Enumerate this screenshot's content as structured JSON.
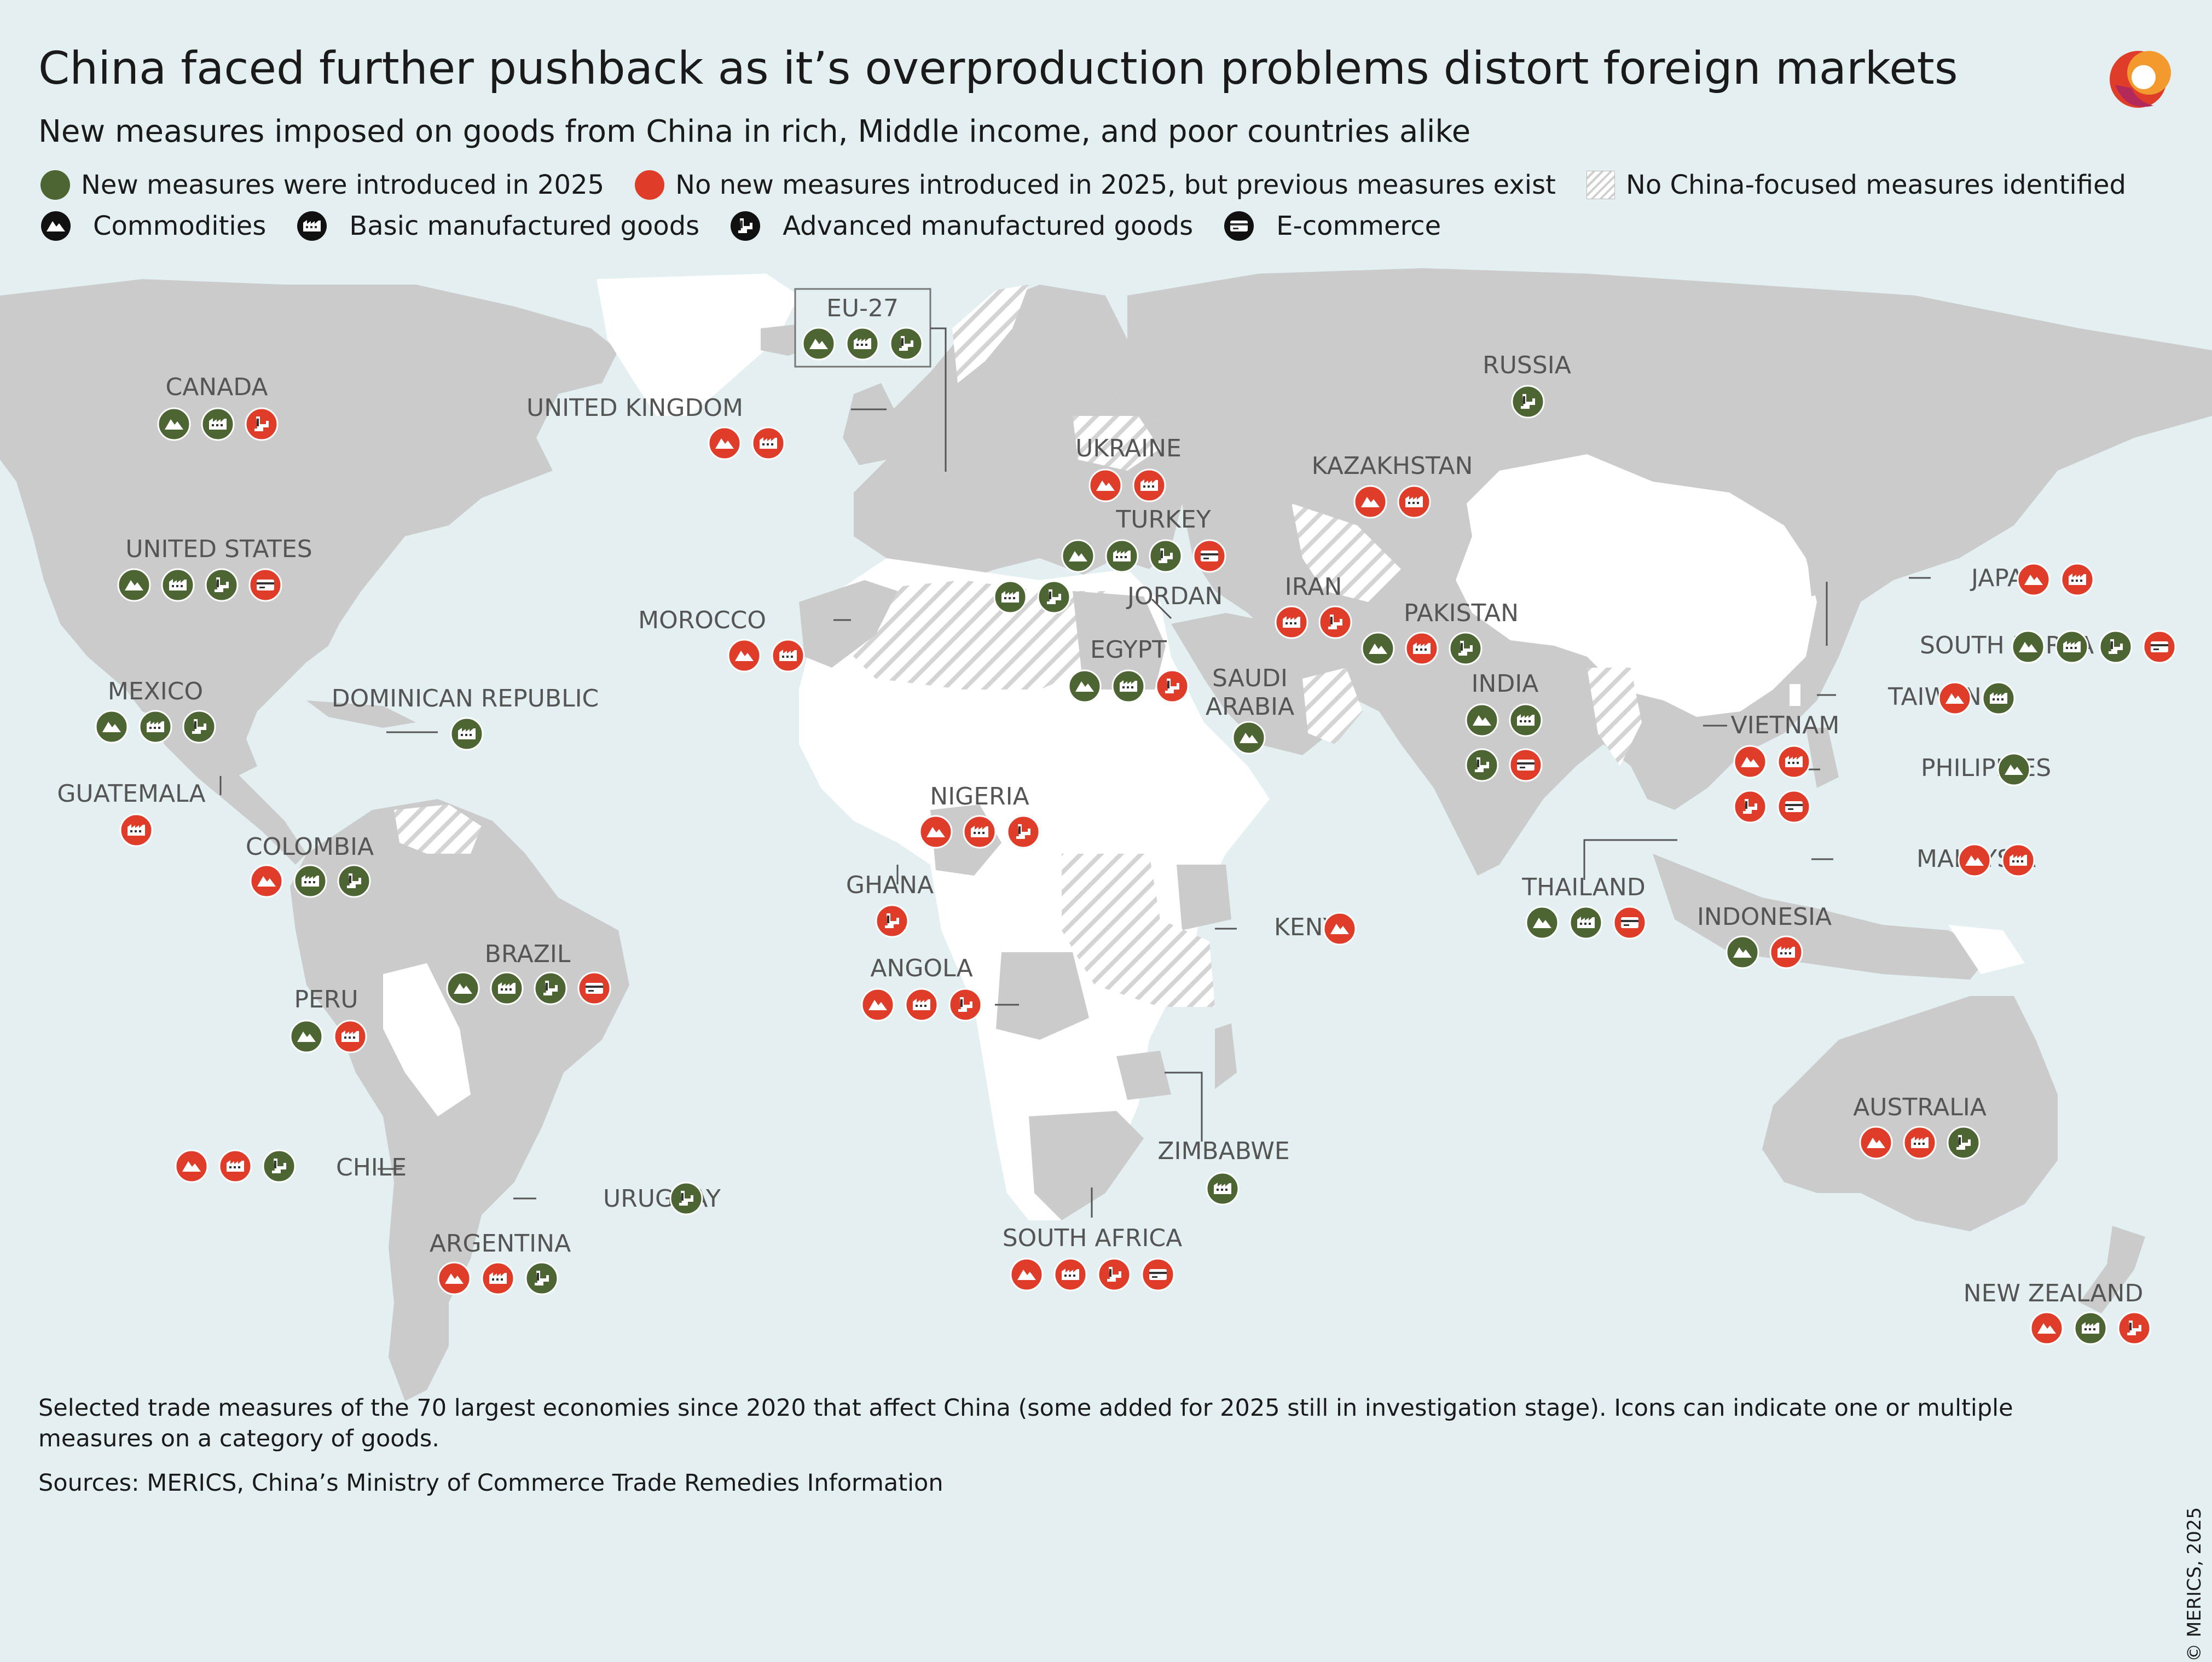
{
  "title": "China faced further pushback as it’s overproduction problems distort foreign markets",
  "subtitle": "New measures imposed on goods from China in rich, Middle income, and poor countries alike",
  "colors": {
    "new": "#4d6533",
    "old": "#e03c2a",
    "land": "#cbcbcb",
    "china": "#ffffff",
    "water": "#e4eff2"
  },
  "legend": {
    "new": "New measures were introduced in 2025",
    "old": "No new measures introduced in 2025, but previous measures exist",
    "none": "No China-focused measures identified",
    "commodities": "Commodities",
    "basic": "Basic manufactured goods",
    "advanced": "Advanced manufactured goods",
    "ecommerce": "E-commerce"
  },
  "countries": [
    {
      "name": "CANADA",
      "icons": [
        [
          "commodities",
          "new"
        ],
        [
          "basic",
          "new"
        ],
        [
          "advanced",
          "old"
        ]
      ]
    },
    {
      "name": "UNITED STATES",
      "icons": [
        [
          "commodities",
          "new"
        ],
        [
          "basic",
          "new"
        ],
        [
          "advanced",
          "new"
        ],
        [
          "ecommerce",
          "old"
        ]
      ]
    },
    {
      "name": "MEXICO",
      "icons": [
        [
          "commodities",
          "new"
        ],
        [
          "basic",
          "new"
        ],
        [
          "advanced",
          "new"
        ]
      ]
    },
    {
      "name": "GUATEMALA",
      "icons": [
        [
          "basic",
          "old"
        ]
      ]
    },
    {
      "name": "DOMINICAN REPUBLIC",
      "icons": [
        [
          "basic",
          "new"
        ]
      ]
    },
    {
      "name": "COLOMBIA",
      "icons": [
        [
          "commodities",
          "old"
        ],
        [
          "basic",
          "new"
        ],
        [
          "advanced",
          "new"
        ]
      ]
    },
    {
      "name": "PERU",
      "icons": [
        [
          "commodities",
          "new"
        ],
        [
          "basic",
          "old"
        ]
      ]
    },
    {
      "name": "BRAZIL",
      "icons": [
        [
          "commodities",
          "new"
        ],
        [
          "basic",
          "new"
        ],
        [
          "advanced",
          "new"
        ],
        [
          "ecommerce",
          "old"
        ]
      ]
    },
    {
      "name": "CHILE",
      "icons": [
        [
          "commodities",
          "old"
        ],
        [
          "basic",
          "old"
        ],
        [
          "advanced",
          "new"
        ]
      ]
    },
    {
      "name": "URUGUAY",
      "icons": [
        [
          "advanced",
          "new"
        ]
      ]
    },
    {
      "name": "ARGENTINA",
      "icons": [
        [
          "commodities",
          "old"
        ],
        [
          "basic",
          "old"
        ],
        [
          "advanced",
          "new"
        ]
      ]
    },
    {
      "name": "EU-27",
      "icons": [
        [
          "commodities",
          "new"
        ],
        [
          "basic",
          "new"
        ],
        [
          "advanced",
          "new"
        ]
      ]
    },
    {
      "name": "UNITED KINGDOM",
      "icons": [
        [
          "commodities",
          "old"
        ],
        [
          "basic",
          "old"
        ]
      ]
    },
    {
      "name": "MOROCCO",
      "icons": [
        [
          "commodities",
          "old"
        ],
        [
          "basic",
          "old"
        ]
      ]
    },
    {
      "name": "UKRAINE",
      "icons": [
        [
          "commodities",
          "old"
        ],
        [
          "basic",
          "old"
        ]
      ]
    },
    {
      "name": "TURKEY",
      "icons": [
        [
          "commodities",
          "new"
        ],
        [
          "basic",
          "new"
        ],
        [
          "advanced",
          "new"
        ],
        [
          "ecommerce",
          "old"
        ]
      ]
    },
    {
      "name": "JORDAN",
      "icons": [
        [
          "basic",
          "new"
        ],
        [
          "advanced",
          "new"
        ]
      ]
    },
    {
      "name": "EGYPT",
      "icons": [
        [
          "commodities",
          "new"
        ],
        [
          "basic",
          "new"
        ],
        [
          "advanced",
          "old"
        ]
      ]
    },
    {
      "name": "SAUDI ARABIA",
      "icons": [
        [
          "commodities",
          "new"
        ]
      ]
    },
    {
      "name": "NIGERIA",
      "icons": [
        [
          "commodities",
          "old"
        ],
        [
          "basic",
          "old"
        ],
        [
          "advanced",
          "old"
        ]
      ]
    },
    {
      "name": "GHANA",
      "icons": [
        [
          "advanced",
          "old"
        ]
      ]
    },
    {
      "name": "ANGOLA",
      "icons": [
        [
          "commodities",
          "old"
        ],
        [
          "basic",
          "old"
        ],
        [
          "advanced",
          "old"
        ]
      ]
    },
    {
      "name": "KENYA",
      "icons": [
        [
          "commodities",
          "old"
        ]
      ]
    },
    {
      "name": "ZIMBABWE",
      "icons": [
        [
          "basic",
          "new"
        ]
      ]
    },
    {
      "name": "SOUTH AFRICA",
      "icons": [
        [
          "commodities",
          "old"
        ],
        [
          "basic",
          "old"
        ],
        [
          "advanced",
          "old"
        ],
        [
          "ecommerce",
          "old"
        ]
      ]
    },
    {
      "name": "RUSSIA",
      "icons": [
        [
          "advanced",
          "new"
        ]
      ]
    },
    {
      "name": "KAZAKHSTAN",
      "icons": [
        [
          "commodities",
          "old"
        ],
        [
          "basic",
          "old"
        ]
      ]
    },
    {
      "name": "IRAN",
      "icons": [
        [
          "basic",
          "old"
        ],
        [
          "advanced",
          "old"
        ]
      ]
    },
    {
      "name": "PAKISTAN",
      "icons": [
        [
          "commodities",
          "new"
        ],
        [
          "basic",
          "old"
        ],
        [
          "advanced",
          "new"
        ]
      ]
    },
    {
      "name": "INDIA",
      "icons": [
        [
          "commodities",
          "new"
        ],
        [
          "basic",
          "new"
        ],
        [
          "advanced",
          "new"
        ],
        [
          "ecommerce",
          "old"
        ]
      ]
    },
    {
      "name": "JAPAN",
      "icons": [
        [
          "commodities",
          "old"
        ],
        [
          "basic",
          "old"
        ]
      ]
    },
    {
      "name": "SOUTH KOREA",
      "icons": [
        [
          "commodities",
          "new"
        ],
        [
          "basic",
          "new"
        ],
        [
          "advanced",
          "new"
        ],
        [
          "ecommerce",
          "old"
        ]
      ]
    },
    {
      "name": "TAIWAN",
      "icons": [
        [
          "commodities",
          "old"
        ],
        [
          "basic",
          "new"
        ]
      ]
    },
    {
      "name": "VIETNAM",
      "icons": [
        [
          "commodities",
          "old"
        ],
        [
          "basic",
          "old"
        ],
        [
          "advanced",
          "old"
        ],
        [
          "ecommerce",
          "old"
        ]
      ]
    },
    {
      "name": "PHILIPINES",
      "icons": [
        [
          "commodities",
          "new"
        ]
      ]
    },
    {
      "name": "MALAYSIA",
      "icons": [
        [
          "commodities",
          "old"
        ],
        [
          "basic",
          "old"
        ]
      ]
    },
    {
      "name": "THAILAND",
      "icons": [
        [
          "commodities",
          "new"
        ],
        [
          "basic",
          "new"
        ],
        [
          "ecommerce",
          "old"
        ]
      ]
    },
    {
      "name": "INDONESIA",
      "icons": [
        [
          "commodities",
          "new"
        ],
        [
          "basic",
          "old"
        ]
      ]
    },
    {
      "name": "AUSTRALIA",
      "icons": [
        [
          "commodities",
          "old"
        ],
        [
          "basic",
          "old"
        ],
        [
          "advanced",
          "new"
        ]
      ]
    },
    {
      "name": "NEW ZEALAND",
      "icons": [
        [
          "commodities",
          "old"
        ],
        [
          "basic",
          "new"
        ],
        [
          "advanced",
          "old"
        ]
      ]
    }
  ],
  "footnote": "Selected trade measures of the 70 largest economies since 2020 that affect China (some added for 2025 still in investigation stage). Icons can indicate one or multiple measures on a category of goods.",
  "sources": "Sources: MERICS, China’s Ministry of Commerce Trade Remedies Information",
  "copyright": "© MERICS, 2025"
}
